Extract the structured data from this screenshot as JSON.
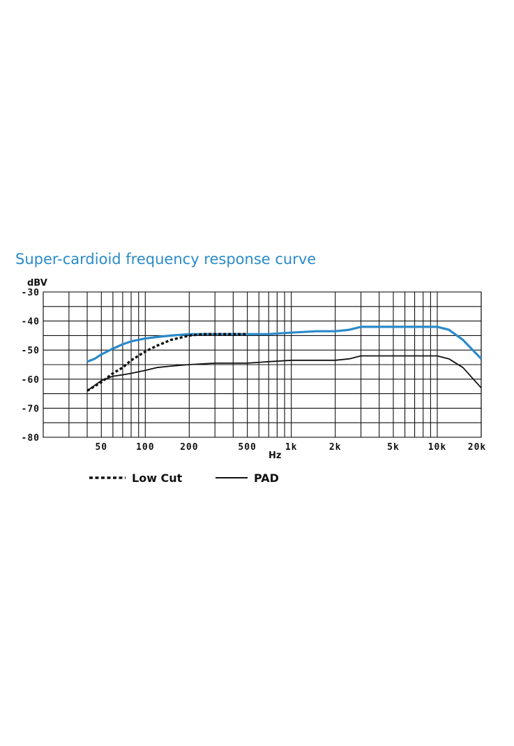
{
  "chart_data": {
    "type": "line",
    "title": "Super-cardioid frequency response curve",
    "ylabel": "dBV",
    "xlabel": "Hz",
    "x_scale": "log",
    "xlim": [
      20,
      20000
    ],
    "ylim": [
      -80,
      -30
    ],
    "x_tick_labels": [
      {
        "value": 50,
        "label": "50"
      },
      {
        "value": 100,
        "label": "100"
      },
      {
        "value": 200,
        "label": "200"
      },
      {
        "value": 500,
        "label": "500"
      },
      {
        "value": 1000,
        "label": "1k"
      },
      {
        "value": 2000,
        "label": "2k"
      },
      {
        "value": 5000,
        "label": "5k"
      },
      {
        "value": 10000,
        "label": "10k"
      },
      {
        "value": 20000,
        "label": "20k"
      }
    ],
    "y_ticks": [
      -30,
      -40,
      -50,
      -60,
      -70,
      -80
    ],
    "y_tick_labels": [
      "-30",
      "-40",
      "-50",
      "-60",
      "-70",
      "-80"
    ],
    "grid": true,
    "legend_position": "bottom-left",
    "legend": [
      {
        "label": "Low Cut",
        "style": "dashed",
        "series": "Low Cut"
      },
      {
        "label": "PAD",
        "style": "solid",
        "series": "PAD"
      }
    ],
    "series": [
      {
        "color": "#2a8ac9",
        "style": "solid",
        "x": [
          40,
          45,
          50,
          60,
          70,
          80,
          100,
          120,
          150,
          200,
          300,
          500,
          700,
          1000,
          1500,
          2000,
          2500,
          3000,
          4000,
          5000,
          7000,
          9000,
          10000,
          12000,
          15000,
          20000
        ],
        "y": [
          -54,
          -53,
          -51.5,
          -49.5,
          -48,
          -47,
          -46,
          -45.5,
          -45,
          -44.5,
          -44.5,
          -44.5,
          -44.5,
          -44,
          -43.5,
          -43.5,
          -43,
          -42,
          -42,
          -42,
          -42,
          -42,
          -42,
          -43,
          -46.5,
          -53
        ]
      },
      {
        "name": "Low Cut",
        "color": "#111111",
        "style": "dashed",
        "x": [
          40,
          50,
          60,
          70,
          80,
          100,
          120,
          150,
          200,
          250,
          300,
          400,
          500
        ],
        "y": [
          -64,
          -61,
          -58,
          -56,
          -53.5,
          -50.5,
          -48.5,
          -46.5,
          -45,
          -44.5,
          -44.5,
          -44.5,
          -44.5
        ]
      },
      {
        "name": "PAD",
        "color": "#111111",
        "style": "solid",
        "x": [
          40,
          50,
          60,
          70,
          80,
          100,
          120,
          150,
          200,
          300,
          500,
          700,
          1000,
          2000,
          2500,
          3000,
          4000,
          5000,
          7000,
          9000,
          10000,
          12000,
          15000,
          20000
        ],
        "y": [
          -64,
          -60.5,
          -59,
          -58.5,
          -58,
          -57,
          -56,
          -55.5,
          -55,
          -54.5,
          -54.5,
          -54,
          -53.5,
          -53.5,
          -53,
          -52,
          -52,
          -52,
          -52,
          -52,
          -52,
          -53,
          -56,
          -63
        ]
      }
    ]
  }
}
